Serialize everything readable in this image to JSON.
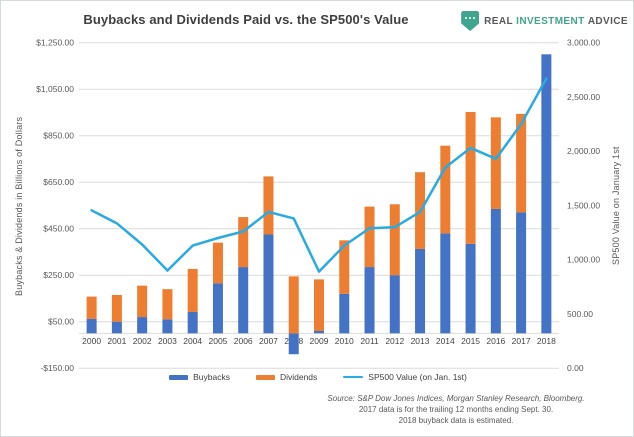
{
  "header": {
    "title": "Buybacks and Dividends Paid vs. the SP500's Value",
    "logo": {
      "word1": "REAL",
      "word2": "INVESTMENT",
      "word3": "ADVICE"
    }
  },
  "axes": {
    "left_title": "Buybacks & Dividends in Billions of Dollars",
    "right_title": "SP500 Value on January 1st",
    "left_tick_labels": [
      "$1,250.00",
      "$1,050.00",
      "$850.00",
      "$650.00",
      "$450.00",
      "$250.00",
      "$50.00",
      "-$150.00"
    ],
    "left_tick_values": [
      1250,
      1050,
      850,
      650,
      450,
      250,
      50,
      -150
    ],
    "right_tick_labels": [
      "3,000.00",
      "2,500.00",
      "2,000.00",
      "1,500.00",
      "1,000.00",
      "500.00",
      "0.00"
    ],
    "right_tick_values": [
      3000,
      2500,
      2000,
      1500,
      1000,
      500,
      0
    ]
  },
  "legend": {
    "buybacks_label": "Buybacks",
    "dividends_label": "Dividends",
    "sp500_label": "SP500 Value (on Jan. 1st)"
  },
  "footer": {
    "source_line": "Source: S&P Dow Jones Indices, Morgan Stanley Research, Bloomberg.",
    "note_line1": "2017 data is for the trailing 12 months ending Sept. 30.",
    "note_line2": "2018 buyback data is estimated."
  },
  "colors": {
    "buybacks": "#4472C4",
    "dividends": "#ED7D31",
    "sp500_line": "#29ABE2",
    "gridline": "#DBDBDB",
    "tick_text": "#595959",
    "category_text": "#444444",
    "logo_teal": "#41A48E",
    "logo_gray": "#57585A"
  },
  "chart_data": {
    "type": "bar",
    "subtype": "stacked bars with overlaid line, dual y-axes",
    "title": "Buybacks and Dividends Paid vs. the SP500's Value",
    "categories": [
      2000,
      2001,
      2002,
      2003,
      2004,
      2005,
      2006,
      2007,
      2008,
      2009,
      2010,
      2011,
      2012,
      2013,
      2014,
      2015,
      2016,
      2017,
      2018
    ],
    "series": [
      {
        "name": "Buybacks",
        "type": "bar",
        "stack": "paid",
        "axis": "left",
        "values": [
          62,
          50,
          70,
          60,
          92,
          215,
          285,
          425,
          -90,
          10,
          170,
          285,
          250,
          363,
          430,
          385,
          535,
          520,
          1200
        ]
      },
      {
        "name": "Dividends",
        "type": "bar",
        "stack": "paid",
        "axis": "left",
        "values": [
          96,
          115,
          135,
          130,
          185,
          175,
          215,
          250,
          245,
          222,
          230,
          260,
          305,
          330,
          377,
          567,
          394,
          424,
          0
        ]
      },
      {
        "name": "SP500 Value (on Jan. 1st)",
        "type": "line",
        "axis": "right",
        "values": [
          1455,
          1335,
          1140,
          900,
          1130,
          1200,
          1260,
          1440,
          1380,
          890,
          1130,
          1290,
          1300,
          1440,
          1850,
          2030,
          1930,
          2250,
          2670
        ]
      }
    ],
    "xlabel": "",
    "ylabel_left": "Buybacks & Dividends in Billions of Dollars",
    "ylabel_right": "SP500 Value on January 1st",
    "ylim_left": [
      -150,
      1250
    ],
    "ylim_right": [
      0,
      3000
    ],
    "grid": true,
    "legend_position": "bottom",
    "units_left": "billions of dollars",
    "units_right": "index points"
  }
}
